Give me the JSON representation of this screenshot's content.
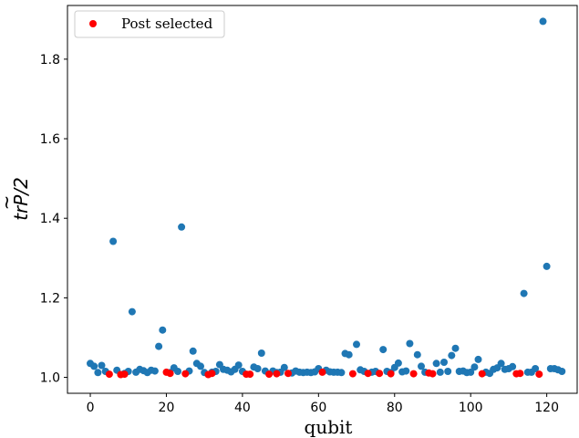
{
  "chart_data": {
    "type": "scatter",
    "title": "",
    "xlabel": "qubit",
    "ylabel": "tr̅P̃/2",
    "ylabel_parts": {
      "prefix": "tr",
      "tilde_var": "P",
      "suffix": "/2"
    },
    "xlim": [
      -6,
      128
    ],
    "ylim": [
      0.96,
      1.935
    ],
    "xticks": [
      0,
      20,
      40,
      60,
      80,
      100,
      120
    ],
    "yticks": [
      1.0,
      1.2,
      1.4,
      1.6,
      1.8
    ],
    "ytick_labels": [
      "1.0",
      "1.2",
      "1.4",
      "1.6",
      "1.8"
    ],
    "xtick_labels": [
      "0",
      "20",
      "40",
      "60",
      "80",
      "100",
      "120"
    ],
    "grid": false,
    "legend_position": "top-left",
    "series": [
      {
        "color": "#1f77b4",
        "points": [
          [
            0,
            1.035
          ],
          [
            1,
            1.028
          ],
          [
            2,
            1.012
          ],
          [
            3,
            1.03
          ],
          [
            4,
            1.015
          ],
          [
            6,
            1.342
          ],
          [
            7,
            1.018
          ],
          [
            9,
            1.01
          ],
          [
            10,
            1.015
          ],
          [
            11,
            1.165
          ],
          [
            12,
            1.013
          ],
          [
            13,
            1.02
          ],
          [
            14,
            1.017
          ],
          [
            15,
            1.012
          ],
          [
            16,
            1.018
          ],
          [
            17,
            1.016
          ],
          [
            18,
            1.078
          ],
          [
            19,
            1.119
          ],
          [
            21,
            1.012
          ],
          [
            22,
            1.024
          ],
          [
            23,
            1.015
          ],
          [
            24,
            1.378
          ],
          [
            26,
            1.016
          ],
          [
            27,
            1.066
          ],
          [
            28,
            1.035
          ],
          [
            29,
            1.028
          ],
          [
            30,
            1.012
          ],
          [
            32,
            1.013
          ],
          [
            33,
            1.015
          ],
          [
            34,
            1.032
          ],
          [
            35,
            1.02
          ],
          [
            36,
            1.018
          ],
          [
            37,
            1.014
          ],
          [
            38,
            1.02
          ],
          [
            39,
            1.031
          ],
          [
            40,
            1.015
          ],
          [
            43,
            1.026
          ],
          [
            44,
            1.022
          ],
          [
            45,
            1.061
          ],
          [
            46,
            1.016
          ],
          [
            48,
            1.016
          ],
          [
            49,
            1.012
          ],
          [
            50,
            1.013
          ],
          [
            51,
            1.025
          ],
          [
            53,
            1.011
          ],
          [
            54,
            1.016
          ],
          [
            55,
            1.013
          ],
          [
            56,
            1.012
          ],
          [
            57,
            1.013
          ],
          [
            58,
            1.012
          ],
          [
            59,
            1.014
          ],
          [
            60,
            1.022
          ],
          [
            62,
            1.018
          ],
          [
            63,
            1.014
          ],
          [
            64,
            1.013
          ],
          [
            65,
            1.013
          ],
          [
            66,
            1.012
          ],
          [
            67,
            1.06
          ],
          [
            68,
            1.057
          ],
          [
            70,
            1.083
          ],
          [
            71,
            1.019
          ],
          [
            72,
            1.015
          ],
          [
            74,
            1.013
          ],
          [
            75,
            1.015
          ],
          [
            77,
            1.07
          ],
          [
            78,
            1.015
          ],
          [
            79,
            1.012
          ],
          [
            80,
            1.025
          ],
          [
            81,
            1.036
          ],
          [
            82,
            1.014
          ],
          [
            83,
            1.016
          ],
          [
            84,
            1.085
          ],
          [
            86,
            1.057
          ],
          [
            87,
            1.028
          ],
          [
            88,
            1.013
          ],
          [
            91,
            1.035
          ],
          [
            92,
            1.013
          ],
          [
            93,
            1.038
          ],
          [
            94,
            1.015
          ],
          [
            95,
            1.055
          ],
          [
            96,
            1.073
          ],
          [
            97,
            1.015
          ],
          [
            98,
            1.016
          ],
          [
            99,
            1.012
          ],
          [
            100,
            1.013
          ],
          [
            101,
            1.026
          ],
          [
            102,
            1.045
          ],
          [
            104,
            1.013
          ],
          [
            105,
            1.01
          ],
          [
            106,
            1.02
          ],
          [
            107,
            1.024
          ],
          [
            108,
            1.035
          ],
          [
            109,
            1.02
          ],
          [
            110,
            1.022
          ],
          [
            111,
            1.027
          ],
          [
            114,
            1.211
          ],
          [
            115,
            1.013
          ],
          [
            116,
            1.013
          ],
          [
            117,
            1.022
          ],
          [
            119,
            1.895
          ],
          [
            120,
            1.279
          ],
          [
            121,
            1.022
          ],
          [
            122,
            1.022
          ],
          [
            123,
            1.019
          ],
          [
            124,
            1.015
          ]
        ]
      },
      {
        "name": "Post selected",
        "color": "#ff0000",
        "points": [
          [
            5,
            1.008
          ],
          [
            8,
            1.007
          ],
          [
            9,
            1.008
          ],
          [
            20,
            1.013
          ],
          [
            21,
            1.01
          ],
          [
            25,
            1.009
          ],
          [
            31,
            1.007
          ],
          [
            32,
            1.01
          ],
          [
            41,
            1.008
          ],
          [
            42,
            1.008
          ],
          [
            47,
            1.008
          ],
          [
            49,
            1.009
          ],
          [
            52,
            1.01
          ],
          [
            61,
            1.013
          ],
          [
            69,
            1.009
          ],
          [
            73,
            1.01
          ],
          [
            76,
            1.01
          ],
          [
            79,
            1.009
          ],
          [
            85,
            1.009
          ],
          [
            89,
            1.011
          ],
          [
            90,
            1.009
          ],
          [
            103,
            1.009
          ],
          [
            112,
            1.009
          ],
          [
            113,
            1.01
          ],
          [
            118,
            1.008
          ]
        ]
      }
    ]
  }
}
